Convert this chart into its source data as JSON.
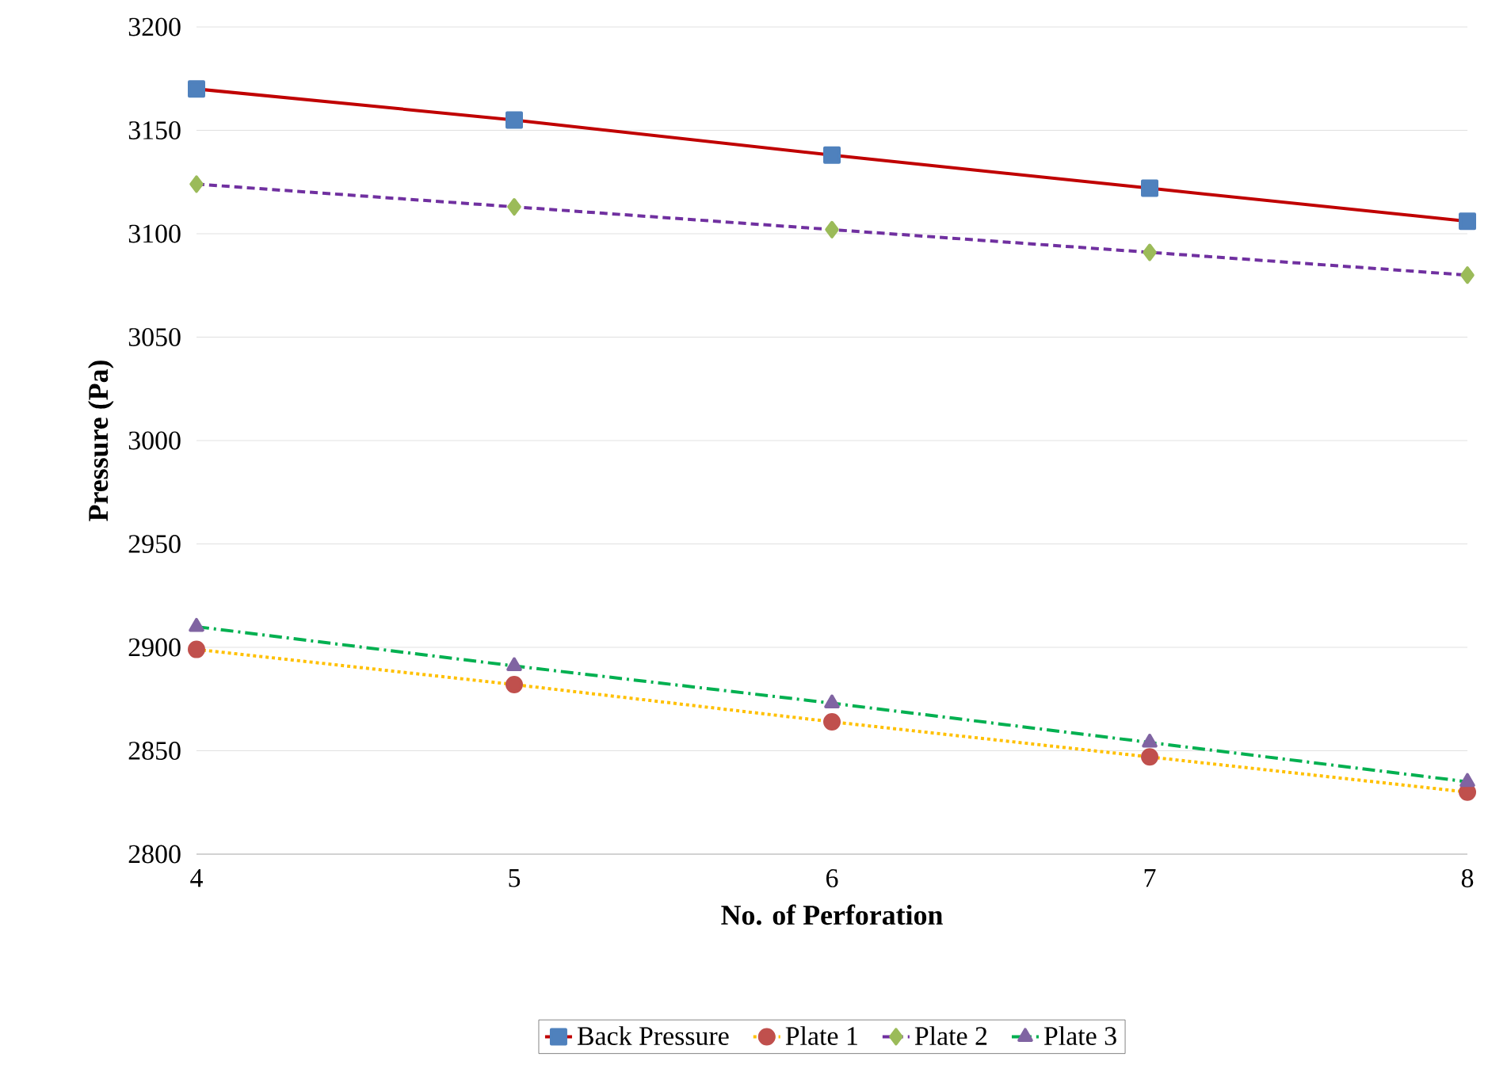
{
  "chart_data": {
    "type": "line",
    "xlabel": "No. of Perforation",
    "ylabel": "Pressure (Pa)",
    "x": [
      4,
      5,
      6,
      7,
      8
    ],
    "series": [
      {
        "name": "Back Pressure",
        "color": "#c00000",
        "marker": "square",
        "line_style": "solid",
        "values": [
          3170,
          3155,
          3138,
          3122,
          3106
        ]
      },
      {
        "name": "Plate 1",
        "color": "#ffc000",
        "marker": "circle",
        "line_style": "dotted",
        "values": [
          2899,
          2882,
          2864,
          2847,
          2830
        ]
      },
      {
        "name": "Plate 2",
        "color": "#7030a0",
        "marker": "diamond",
        "line_style": "dashed",
        "values": [
          3124,
          3113,
          3102,
          3091,
          3080
        ]
      },
      {
        "name": "Plate 3",
        "color": "#00b050",
        "marker": "triangle",
        "line_style": "dashdot",
        "values": [
          2910,
          2891,
          2873,
          2854,
          2835
        ]
      }
    ],
    "xlim": [
      4,
      8
    ],
    "xticks": [
      4,
      5,
      6,
      7,
      8
    ],
    "ylim": [
      2800,
      3200
    ],
    "yticks": [
      2800,
      2850,
      2900,
      2950,
      3000,
      3050,
      3100,
      3150,
      3200
    ],
    "grid": "y",
    "legend": "bottom"
  }
}
